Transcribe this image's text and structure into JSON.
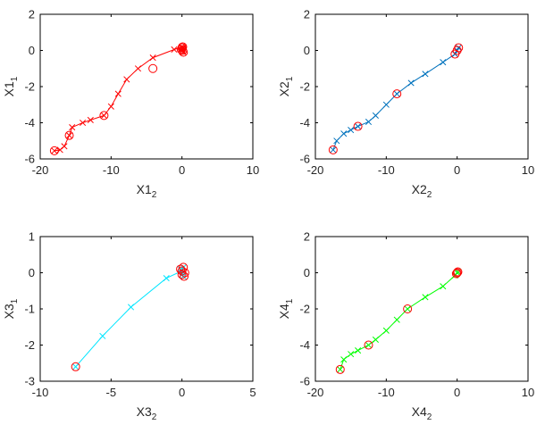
{
  "chart_data": [
    {
      "type": "line",
      "xlabel": {
        "base": "X1",
        "sub": "2"
      },
      "ylabel": {
        "base": "X1",
        "sub": "1"
      },
      "xlim": [
        -20,
        10
      ],
      "ylim": [
        -6,
        2
      ],
      "xticks": [
        -20,
        -10,
        0,
        10
      ],
      "yticks": [
        -6,
        -4,
        -2,
        0,
        2
      ],
      "color": "#ff0000",
      "series": [
        {
          "x": [
            -18.0,
            -17.2,
            -16.6,
            -15.9,
            -15.5,
            -14.0,
            -12.9,
            -11.0,
            -10.0,
            -9.0,
            -7.8,
            -6.2,
            -4.1,
            -1.1,
            0.0,
            0.1,
            0.1,
            0.2,
            0.1,
            0.0
          ],
          "y": [
            -5.55,
            -5.5,
            -5.3,
            -4.7,
            -4.25,
            -4.0,
            -3.85,
            -3.6,
            -3.1,
            -2.4,
            -1.6,
            -1.0,
            -0.4,
            0.05,
            0.2,
            0.1,
            0.0,
            -0.1,
            0.15,
            -0.05
          ],
          "circles": [
            [
              -18.0,
              -5.55
            ],
            [
              -15.9,
              -4.7
            ],
            [
              -11.0,
              -3.6
            ],
            [
              -4.1,
              -1.0
            ],
            [
              0.0,
              0.15
            ],
            [
              0.1,
              0.0
            ],
            [
              0.2,
              -0.1
            ],
            [
              -0.1,
              0.05
            ],
            [
              0.1,
              0.2
            ]
          ]
        }
      ]
    },
    {
      "type": "line",
      "xlabel": {
        "base": "X2",
        "sub": "2"
      },
      "ylabel": {
        "base": "X2",
        "sub": "1"
      },
      "xlim": [
        -20,
        10
      ],
      "ylim": [
        -6,
        2
      ],
      "xticks": [
        -20,
        -10,
        0,
        10
      ],
      "yticks": [
        -6,
        -4,
        -2,
        0,
        2
      ],
      "color": "#0072bd",
      "series": [
        {
          "x": [
            -17.5,
            -17.0,
            -16.0,
            -15.0,
            -14.0,
            -12.5,
            -11.5,
            -10.0,
            -8.5,
            -6.5,
            -4.5,
            -2.0,
            -0.3,
            0.0,
            0.2
          ],
          "y": [
            -5.5,
            -5.0,
            -4.6,
            -4.4,
            -4.2,
            -3.95,
            -3.6,
            -3.0,
            -2.4,
            -1.8,
            -1.3,
            -0.65,
            -0.2,
            0.0,
            0.15
          ],
          "circles": [
            [
              -17.5,
              -5.5
            ],
            [
              -14.0,
              -4.2
            ],
            [
              -8.5,
              -2.4
            ],
            [
              -0.3,
              -0.2
            ],
            [
              0.0,
              0.0
            ],
            [
              0.2,
              0.15
            ]
          ]
        }
      ]
    },
    {
      "type": "line",
      "xlabel": {
        "base": "X3",
        "sub": "2"
      },
      "ylabel": {
        "base": "X3",
        "sub": "1"
      },
      "xlim": [
        -10,
        5
      ],
      "ylim": [
        -3,
        1
      ],
      "xticks": [
        -10,
        -5,
        0,
        5
      ],
      "yticks": [
        -3,
        -2,
        -1,
        0,
        1
      ],
      "color": "#00e5ff",
      "series": [
        {
          "x": [
            -7.5,
            -5.6,
            -3.6,
            -1.1,
            0.0,
            0.1,
            0.0,
            -0.1,
            0.1
          ],
          "y": [
            -2.6,
            -1.75,
            -0.95,
            -0.15,
            0.05,
            0.15,
            -0.05,
            0.1,
            -0.1
          ],
          "circles": [
            [
              -7.5,
              -2.6
            ],
            [
              0.0,
              0.05
            ],
            [
              0.1,
              0.15
            ],
            [
              0.0,
              -0.05
            ],
            [
              -0.1,
              0.1
            ],
            [
              0.15,
              -0.1
            ],
            [
              0.2,
              0.0
            ]
          ]
        }
      ]
    },
    {
      "type": "line",
      "xlabel": {
        "base": "X4",
        "sub": "2"
      },
      "ylabel": {
        "base": "X4",
        "sub": "1"
      },
      "xlim": [
        -20,
        10
      ],
      "ylim": [
        -6,
        2
      ],
      "xticks": [
        -20,
        -10,
        0,
        10
      ],
      "yticks": [
        -6,
        -4,
        -2,
        0,
        2
      ],
      "color": "#00ff00",
      "series": [
        {
          "x": [
            -16.5,
            -16.0,
            -15.0,
            -14.0,
            -12.5,
            -11.5,
            -10.0,
            -8.5,
            -7.0,
            -4.5,
            -2.0,
            -0.3,
            0.0,
            0.1
          ],
          "y": [
            -5.35,
            -4.8,
            -4.5,
            -4.3,
            -4.0,
            -3.7,
            -3.2,
            -2.6,
            -2.0,
            -1.35,
            -0.75,
            -0.15,
            0.0,
            0.05
          ],
          "circles": [
            [
              -16.5,
              -5.35
            ],
            [
              -12.5,
              -4.0
            ],
            [
              -7.0,
              -2.0
            ],
            [
              0.0,
              0.0
            ],
            [
              0.1,
              0.05
            ],
            [
              -0.1,
              -0.05
            ]
          ]
        }
      ]
    }
  ],
  "marker_circle_color": "#ff0000"
}
